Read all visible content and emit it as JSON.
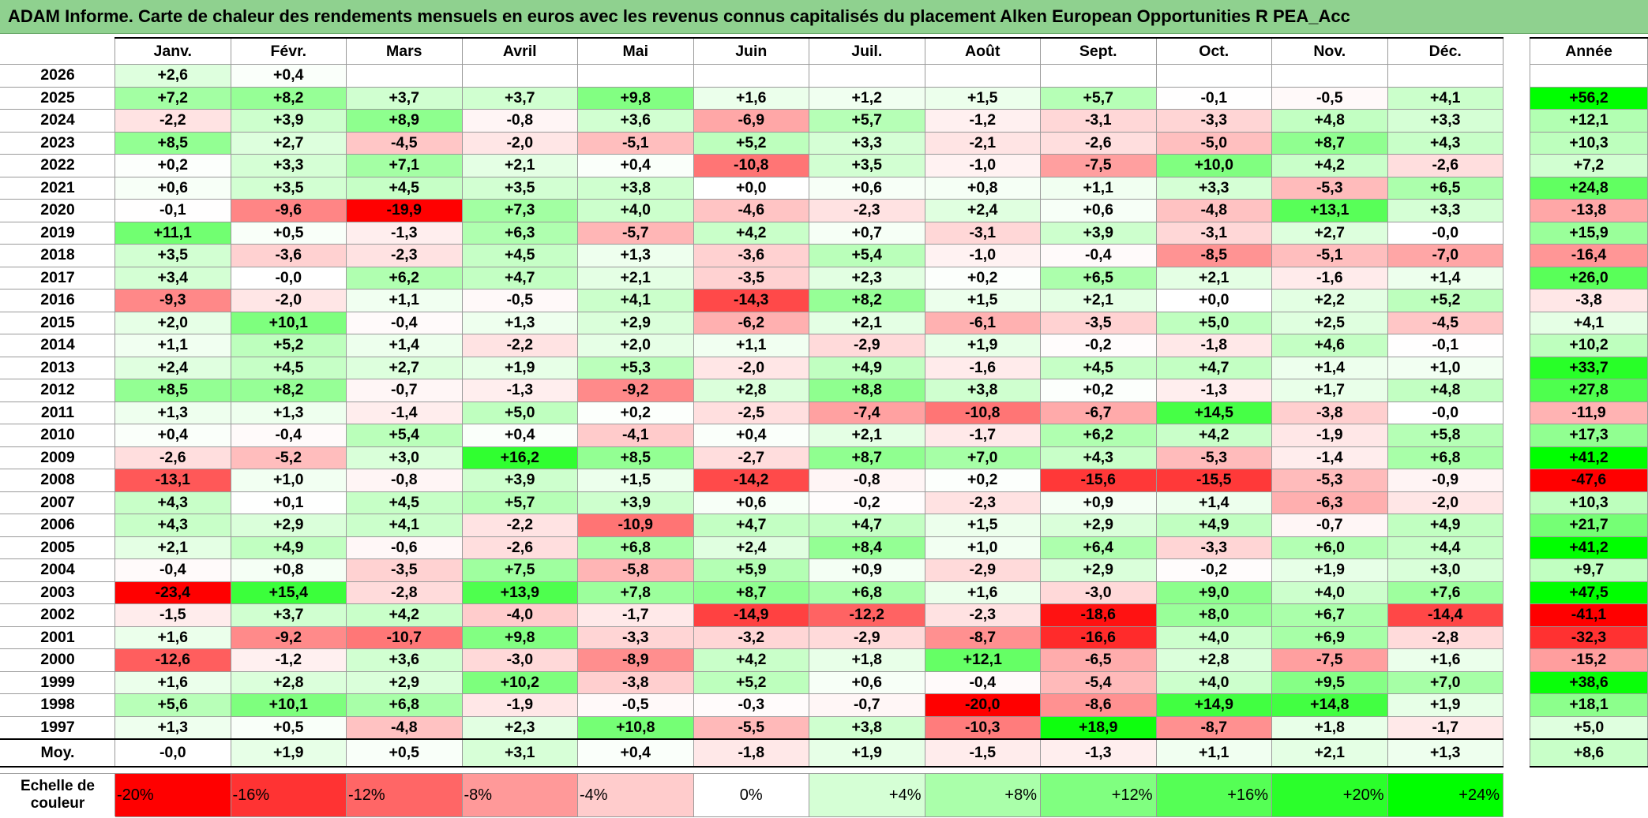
{
  "title": "ADAM Informe. Carte de chaleur des rendements mensuels en euros avec les revenus connus capitalisés du placement Alken European Opportunities R PEA_Acc",
  "colors": {
    "title_bg": "#8fd18f",
    "positive": "#00ff00",
    "negative": "#ff0000",
    "neutral": "#ffffff"
  },
  "chart_data": {
    "type": "heatmap",
    "title": "ADAM Informe. Carte de chaleur des rendements mensuels en euros avec les revenus connus capitalisés du placement Alken European Opportunities R PEA_Acc",
    "months": [
      "Janv.",
      "Févr.",
      "Mars",
      "Avril",
      "Mai",
      "Juin",
      "Juil.",
      "Août",
      "Sept.",
      "Oct.",
      "Nov.",
      "Déc."
    ],
    "year_header": "Année",
    "avg_label": "Moy.",
    "rows": [
      {
        "year": "2026",
        "m": [
          "+2,6",
          "+0,4",
          "",
          "",
          "",
          "",
          "",
          "",
          "",
          "",
          "",
          ""
        ],
        "annual": ""
      },
      {
        "year": "2025",
        "m": [
          "+7,2",
          "+8,2",
          "+3,7",
          "+3,7",
          "+9,8",
          "+1,6",
          "+1,2",
          "+1,5",
          "+5,7",
          "-0,1",
          "-0,5",
          "+4,1"
        ],
        "annual": "+56,2"
      },
      {
        "year": "2024",
        "m": [
          "-2,2",
          "+3,9",
          "+8,9",
          "-0,8",
          "+3,6",
          "-6,9",
          "+5,7",
          "-1,2",
          "-3,1",
          "-3,3",
          "+4,8",
          "+3,3"
        ],
        "annual": "+12,1"
      },
      {
        "year": "2023",
        "m": [
          "+8,5",
          "+2,7",
          "-4,5",
          "-2,0",
          "-5,1",
          "+5,2",
          "+3,3",
          "-2,1",
          "-2,6",
          "-5,0",
          "+8,7",
          "+4,3"
        ],
        "annual": "+10,3"
      },
      {
        "year": "2022",
        "m": [
          "+0,2",
          "+3,3",
          "+7,1",
          "+2,1",
          "+0,4",
          "-10,8",
          "+3,5",
          "-1,0",
          "-7,5",
          "+10,0",
          "+4,2",
          "-2,6"
        ],
        "annual": "+7,2"
      },
      {
        "year": "2021",
        "m": [
          "+0,6",
          "+3,5",
          "+4,5",
          "+3,5",
          "+3,8",
          "+0,0",
          "+0,6",
          "+0,8",
          "+1,1",
          "+3,3",
          "-5,3",
          "+6,5"
        ],
        "annual": "+24,8"
      },
      {
        "year": "2020",
        "m": [
          "-0,1",
          "-9,6",
          "-19,9",
          "+7,3",
          "+4,0",
          "-4,6",
          "-2,3",
          "+2,4",
          "+0,6",
          "-4,8",
          "+13,1",
          "+3,3"
        ],
        "annual": "-13,8"
      },
      {
        "year": "2019",
        "m": [
          "+11,1",
          "+0,5",
          "-1,3",
          "+6,3",
          "-5,7",
          "+4,2",
          "+0,7",
          "-3,1",
          "+3,9",
          "-3,1",
          "+2,7",
          "-0,0"
        ],
        "annual": "+15,9"
      },
      {
        "year": "2018",
        "m": [
          "+3,5",
          "-3,6",
          "-2,3",
          "+4,5",
          "+1,3",
          "-3,6",
          "+5,4",
          "-1,0",
          "-0,4",
          "-8,5",
          "-5,1",
          "-7,0"
        ],
        "annual": "-16,4"
      },
      {
        "year": "2017",
        "m": [
          "+3,4",
          "-0,0",
          "+6,2",
          "+4,7",
          "+2,1",
          "-3,5",
          "+2,3",
          "+0,2",
          "+6,5",
          "+2,1",
          "-1,6",
          "+1,4"
        ],
        "annual": "+26,0"
      },
      {
        "year": "2016",
        "m": [
          "-9,3",
          "-2,0",
          "+1,1",
          "-0,5",
          "+4,1",
          "-14,3",
          "+8,2",
          "+1,5",
          "+2,1",
          "+0,0",
          "+2,2",
          "+5,2"
        ],
        "annual": "-3,8"
      },
      {
        "year": "2015",
        "m": [
          "+2,0",
          "+10,1",
          "-0,4",
          "+1,3",
          "+2,9",
          "-6,2",
          "+2,1",
          "-6,1",
          "-3,5",
          "+5,0",
          "+2,5",
          "-4,5"
        ],
        "annual": "+4,1"
      },
      {
        "year": "2014",
        "m": [
          "+1,1",
          "+5,2",
          "+1,4",
          "-2,2",
          "+2,0",
          "+1,1",
          "-2,9",
          "+1,9",
          "-0,2",
          "-1,8",
          "+4,6",
          "-0,1"
        ],
        "annual": "+10,2"
      },
      {
        "year": "2013",
        "m": [
          "+2,4",
          "+4,5",
          "+2,7",
          "+1,9",
          "+5,3",
          "-2,0",
          "+4,9",
          "-1,6",
          "+4,5",
          "+4,7",
          "+1,4",
          "+1,0"
        ],
        "annual": "+33,7"
      },
      {
        "year": "2012",
        "m": [
          "+8,5",
          "+8,2",
          "-0,7",
          "-1,3",
          "-9,2",
          "+2,8",
          "+8,8",
          "+3,8",
          "+0,2",
          "-1,3",
          "+1,7",
          "+4,8"
        ],
        "annual": "+27,8"
      },
      {
        "year": "2011",
        "m": [
          "+1,3",
          "+1,3",
          "-1,4",
          "+5,0",
          "+0,2",
          "-2,5",
          "-7,4",
          "-10,8",
          "-6,7",
          "+14,5",
          "-3,8",
          "-0,0"
        ],
        "annual": "-11,9"
      },
      {
        "year": "2010",
        "m": [
          "+0,4",
          "-0,4",
          "+5,4",
          "+0,4",
          "-4,1",
          "+0,4",
          "+2,1",
          "-1,7",
          "+6,2",
          "+4,2",
          "-1,9",
          "+5,8"
        ],
        "annual": "+17,3"
      },
      {
        "year": "2009",
        "m": [
          "-2,6",
          "-5,2",
          "+3,0",
          "+16,2",
          "+8,5",
          "-2,7",
          "+8,7",
          "+7,0",
          "+4,3",
          "-5,3",
          "-1,4",
          "+6,8"
        ],
        "annual": "+41,2"
      },
      {
        "year": "2008",
        "m": [
          "-13,1",
          "+1,0",
          "-0,8",
          "+3,9",
          "+1,5",
          "-14,2",
          "-0,8",
          "+0,2",
          "-15,6",
          "-15,5",
          "-5,3",
          "-0,9"
        ],
        "annual": "-47,6"
      },
      {
        "year": "2007",
        "m": [
          "+4,3",
          "+0,1",
          "+4,5",
          "+5,7",
          "+3,9",
          "+0,6",
          "-0,2",
          "-2,3",
          "+0,9",
          "+1,4",
          "-6,3",
          "-2,0"
        ],
        "annual": "+10,3"
      },
      {
        "year": "2006",
        "m": [
          "+4,3",
          "+2,9",
          "+4,1",
          "-2,2",
          "-10,9",
          "+4,7",
          "+4,7",
          "+1,5",
          "+2,9",
          "+4,9",
          "-0,7",
          "+4,9"
        ],
        "annual": "+21,7"
      },
      {
        "year": "2005",
        "m": [
          "+2,1",
          "+4,9",
          "-0,6",
          "-2,6",
          "+6,8",
          "+2,4",
          "+8,4",
          "+1,0",
          "+6,4",
          "-3,3",
          "+6,0",
          "+4,4"
        ],
        "annual": "+41,2"
      },
      {
        "year": "2004",
        "m": [
          "-0,4",
          "+0,8",
          "-3,5",
          "+7,5",
          "-5,8",
          "+5,9",
          "+0,9",
          "-2,9",
          "+2,9",
          "-0,2",
          "+1,9",
          "+3,0"
        ],
        "annual": "+9,7"
      },
      {
        "year": "2003",
        "m": [
          "-23,4",
          "+15,4",
          "-2,8",
          "+13,9",
          "+7,8",
          "+8,7",
          "+6,8",
          "+1,6",
          "-3,0",
          "+9,0",
          "+4,0",
          "+7,6"
        ],
        "annual": "+47,5"
      },
      {
        "year": "2002",
        "m": [
          "-1,5",
          "+3,7",
          "+4,2",
          "-4,0",
          "-1,7",
          "-14,9",
          "-12,2",
          "-2,3",
          "-18,6",
          "+8,0",
          "+6,7",
          "-14,4"
        ],
        "annual": "-41,1"
      },
      {
        "year": "2001",
        "m": [
          "+1,6",
          "-9,2",
          "-10,7",
          "+9,8",
          "-3,3",
          "-3,2",
          "-2,9",
          "-8,7",
          "-16,6",
          "+4,0",
          "+6,9",
          "-2,8"
        ],
        "annual": "-32,3"
      },
      {
        "year": "2000",
        "m": [
          "-12,6",
          "-1,2",
          "+3,6",
          "-3,0",
          "-8,9",
          "+4,2",
          "+1,8",
          "+12,1",
          "-6,5",
          "+2,8",
          "-7,5",
          "+1,6"
        ],
        "annual": "-15,2"
      },
      {
        "year": "1999",
        "m": [
          "+1,6",
          "+2,8",
          "+2,9",
          "+10,2",
          "-3,8",
          "+5,2",
          "+0,6",
          "-0,4",
          "-5,4",
          "+4,0",
          "+9,5",
          "+7,0"
        ],
        "annual": "+38,6"
      },
      {
        "year": "1998",
        "m": [
          "+5,6",
          "+10,1",
          "+6,8",
          "-1,9",
          "-0,5",
          "-0,3",
          "-0,7",
          "-20,0",
          "-8,6",
          "+14,9",
          "+14,8",
          "+1,9"
        ],
        "annual": "+18,1"
      },
      {
        "year": "1997",
        "m": [
          "+1,3",
          "+0,5",
          "-4,8",
          "+2,3",
          "+10,8",
          "-5,5",
          "+3,8",
          "-10,3",
          "+18,9",
          "-8,7",
          "+1,8",
          "-1,7"
        ],
        "annual": "+5,0"
      }
    ],
    "averages": {
      "m": [
        "-0,0",
        "+1,9",
        "+0,5",
        "+3,1",
        "+0,4",
        "-1,8",
        "+1,9",
        "-1,5",
        "-1,3",
        "+1,1",
        "+2,1",
        "+1,3"
      ],
      "annual": "+8,6"
    },
    "scale_label_line1": "Echelle de",
    "scale_label_line2": "couleur",
    "scale": [
      "-20%",
      "-16%",
      "-12%",
      "-8%",
      "-4%",
      "0%",
      "+4%",
      "+8%",
      "+12%",
      "+16%",
      "+20%",
      "+24%"
    ]
  }
}
